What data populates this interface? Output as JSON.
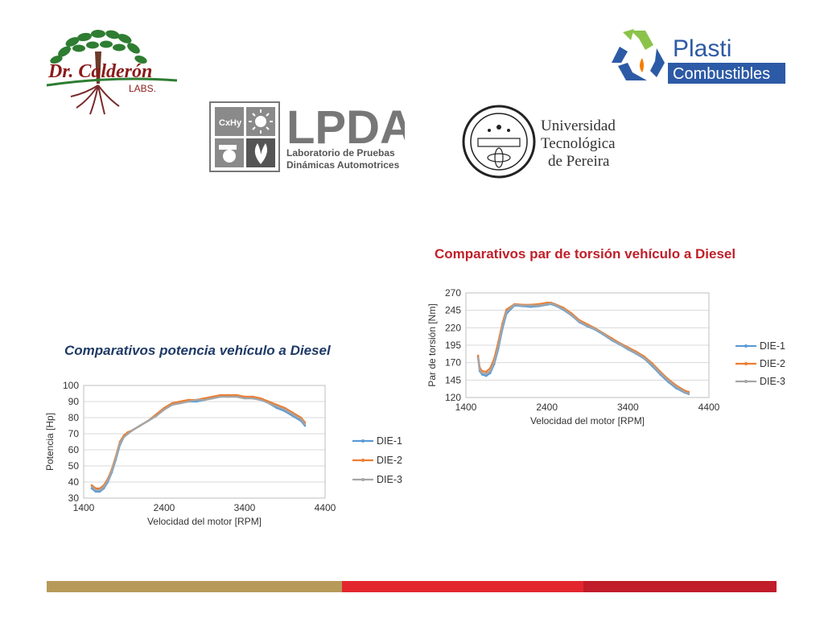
{
  "logos": {
    "calderon": {
      "line1": "Dr. Calderón",
      "line2": "LABS."
    },
    "plasti": {
      "line1": "Plasti",
      "line2": "Combustibles"
    },
    "lpda": {
      "acronym": "LPDA",
      "line1": "Laboratorio de Pruebas",
      "line2": "Dinámicas Automotrices",
      "tile_text": "CxHy"
    },
    "utp": {
      "line1": "Universidad",
      "line2": "Tecnológica",
      "line3": "de Pereira"
    }
  },
  "colors": {
    "title_torque": "#c0202a",
    "title_power": "#1f3a66",
    "bar_gold": "#b79a5a",
    "bar_red": "#e3262e",
    "bar_dark_red": "#c11c2a",
    "gridline": "#d9d9d9"
  },
  "chart_data": [
    {
      "id": "torque",
      "type": "line",
      "title": "Comparativos par de torsión vehículo a Diesel",
      "xlabel": "Velocidad del motor [RPM]",
      "ylabel": "Par de torsión [Nm]",
      "xlim": [
        1400,
        4400
      ],
      "ylim": [
        120,
        270
      ],
      "xticks": [
        1400,
        2400,
        3400,
        4400
      ],
      "yticks": [
        120,
        145,
        170,
        195,
        220,
        245,
        270
      ],
      "grid": true,
      "legend": "right",
      "series": [
        {
          "name": "DIE-1",
          "color": "#5b9bd5",
          "x": [
            1550,
            1570,
            1600,
            1650,
            1700,
            1750,
            1800,
            1850,
            1900,
            2000,
            2100,
            2200,
            2300,
            2400,
            2450,
            2500,
            2600,
            2700,
            2800,
            2900,
            3000,
            3100,
            3200,
            3300,
            3400,
            3500,
            3600,
            3700,
            3800,
            3900,
            4000,
            4100,
            4150
          ],
          "y": [
            178,
            158,
            153,
            151,
            155,
            168,
            190,
            218,
            240,
            252,
            251,
            250,
            251,
            253,
            254,
            252,
            246,
            238,
            228,
            222,
            217,
            210,
            202,
            196,
            189,
            183,
            176,
            165,
            153,
            142,
            133,
            127,
            125
          ]
        },
        {
          "name": "DIE-2",
          "color": "#ed7d31",
          "x": [
            1550,
            1570,
            1600,
            1650,
            1700,
            1750,
            1800,
            1850,
            1900,
            2000,
            2100,
            2200,
            2300,
            2400,
            2450,
            2500,
            2600,
            2700,
            2800,
            2900,
            3000,
            3100,
            3200,
            3300,
            3400,
            3500,
            3600,
            3700,
            3800,
            3900,
            4000,
            4100,
            4150
          ],
          "y": [
            180,
            163,
            158,
            157,
            162,
            176,
            200,
            226,
            246,
            254,
            253,
            253,
            254,
            256,
            256,
            254,
            249,
            241,
            231,
            225,
            219,
            212,
            205,
            198,
            192,
            186,
            179,
            169,
            157,
            146,
            137,
            130,
            128
          ]
        },
        {
          "name": "DIE-3",
          "color": "#a5a5a5",
          "x": [
            1550,
            1570,
            1600,
            1650,
            1700,
            1750,
            1800,
            1850,
            1900,
            2000,
            2100,
            2200,
            2300,
            2400,
            2450,
            2500,
            2600,
            2700,
            2800,
            2900,
            3000,
            3100,
            3200,
            3300,
            3400,
            3500,
            3600,
            3700,
            3800,
            3900,
            4000,
            4100,
            4150
          ],
          "y": [
            177,
            160,
            155,
            154,
            158,
            171,
            194,
            222,
            243,
            253,
            252,
            252,
            252,
            254,
            255,
            253,
            247,
            239,
            229,
            223,
            218,
            211,
            203,
            197,
            190,
            184,
            177,
            167,
            155,
            144,
            135,
            128,
            126
          ]
        }
      ]
    },
    {
      "id": "power",
      "type": "line",
      "title": "Comparativos potencia vehículo a Diesel",
      "xlabel": "Velocidad del motor [RPM]",
      "ylabel": "Potencia [Hp]",
      "xlim": [
        1400,
        4400
      ],
      "ylim": [
        30,
        100
      ],
      "xticks": [
        1400,
        2400,
        3400,
        4400
      ],
      "yticks": [
        30,
        40,
        50,
        60,
        70,
        80,
        90,
        100
      ],
      "grid": true,
      "legend": "right",
      "series": [
        {
          "name": "DIE-1",
          "color": "#5b9bd5",
          "x": [
            1500,
            1550,
            1600,
            1650,
            1700,
            1750,
            1800,
            1850,
            1900,
            1950,
            2000,
            2100,
            2200,
            2300,
            2400,
            2500,
            2600,
            2700,
            2800,
            2900,
            3000,
            3100,
            3200,
            3300,
            3400,
            3500,
            3600,
            3700,
            3800,
            3900,
            4000,
            4100,
            4150
          ],
          "y": [
            36,
            34,
            34,
            36,
            40,
            46,
            54,
            63,
            68,
            70,
            72,
            75,
            78,
            81,
            85,
            88,
            89,
            90,
            90,
            91,
            92,
            93,
            93,
            93,
            92,
            92,
            91,
            89,
            86,
            84,
            81,
            78,
            75
          ]
        },
        {
          "name": "DIE-2",
          "color": "#ed7d31",
          "x": [
            1500,
            1550,
            1600,
            1650,
            1700,
            1750,
            1800,
            1850,
            1900,
            1950,
            2000,
            2100,
            2200,
            2300,
            2400,
            2500,
            2600,
            2700,
            2800,
            2900,
            3000,
            3100,
            3200,
            3300,
            3400,
            3500,
            3600,
            3700,
            3800,
            3900,
            4000,
            4100,
            4150
          ],
          "y": [
            38,
            36,
            36,
            38,
            42,
            48,
            56,
            65,
            69,
            71,
            72,
            75,
            78,
            82,
            86,
            89,
            90,
            91,
            91,
            92,
            93,
            94,
            94,
            94,
            93,
            93,
            92,
            90,
            88,
            86,
            83,
            80,
            77
          ]
        },
        {
          "name": "DIE-3",
          "color": "#a5a5a5",
          "x": [
            1500,
            1550,
            1600,
            1650,
            1700,
            1750,
            1800,
            1850,
            1900,
            1950,
            2000,
            2100,
            2200,
            2300,
            2400,
            2500,
            2600,
            2700,
            2800,
            2900,
            3000,
            3100,
            3200,
            3300,
            3400,
            3500,
            3600,
            3700,
            3800,
            3900,
            4000,
            4100,
            4150
          ],
          "y": [
            37,
            35,
            35,
            37,
            41,
            47,
            55,
            64,
            68,
            70,
            72,
            75,
            78,
            81,
            85,
            88,
            89,
            90,
            91,
            91,
            92,
            93,
            93,
            93,
            92,
            92,
            91,
            89,
            87,
            85,
            82,
            79,
            76
          ]
        }
      ]
    }
  ]
}
